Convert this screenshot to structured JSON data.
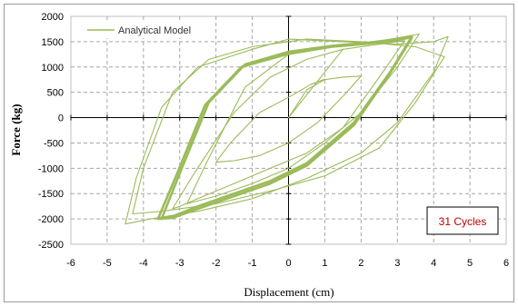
{
  "chart_data": {
    "type": "line",
    "xlabel": "Displacement (cm)",
    "ylabel": "Force (kg)",
    "xlim": [
      -6,
      6
    ],
    "ylim": [
      -2500,
      2000
    ],
    "x_ticks": [
      "-6",
      "-5",
      "-4",
      "-3",
      "-2",
      "-1",
      "0",
      "1",
      "2",
      "3",
      "4",
      "5",
      "6"
    ],
    "y_ticks": [
      "-2500",
      "-2000",
      "-1500",
      "-1000",
      "-500",
      "0",
      "500",
      "1000",
      "1500",
      "2000"
    ],
    "grid": true,
    "legend_position": "top-left",
    "annotation": "31 Cycles",
    "annotation_color": "#c00000",
    "series": [
      {
        "name": "Analytical Model",
        "color": "#9bbb59",
        "loops": [
          {
            "x": [
              0,
              0.5,
              1.0,
              1.5,
              2.0,
              1.6,
              0.8,
              0.0,
              -0.8,
              -1.5,
              -2.0,
              -1.6,
              -0.8,
              0.0,
              0.6,
              1.0
            ],
            "y": [
              0,
              550,
              750,
              800,
              820,
              500,
              -100,
              -500,
              -750,
              -850,
              -880,
              -500,
              100,
              400,
              650,
              760
            ]
          },
          {
            "x": [
              0,
              1.5,
              2.5,
              3.0,
              3.2,
              2.6,
              1.5,
              0.5,
              -0.5,
              -1.5,
              -2.5,
              -3.0,
              -3.2,
              -2.6,
              -1.5,
              -0.5,
              0.5,
              1.5,
              2.5,
              3.2
            ],
            "y": [
              0,
              1350,
              1450,
              1500,
              1520,
              900,
              -200,
              -700,
              -1000,
              -1300,
              -1600,
              -1750,
              -1800,
              -1100,
              100,
              800,
              1150,
              1350,
              1450,
              1520
            ]
          },
          {
            "x": [
              3.4,
              2.8,
              1.8,
              0.5,
              -0.5,
              -1.5,
              -2.5,
              -3.2,
              -3.5,
              -3.0,
              -2.2,
              -1.2,
              0.0,
              1.2,
              2.2,
              3.0,
              3.4
            ],
            "y": [
              1600,
              900,
              -100,
              -900,
              -1250,
              -1500,
              -1750,
              -1950,
              -2000,
              -1100,
              300,
              1050,
              1300,
              1420,
              1480,
              1550,
              1600
            ],
            "bold": true
          },
          {
            "x": [
              3.4,
              2.8,
              1.8,
              0.5,
              -0.5,
              -1.5,
              -2.5,
              -3.2,
              -3.6,
              -3.1,
              -2.3,
              -1.3,
              0.0,
              1.2,
              2.2,
              3.0,
              3.35
            ],
            "y": [
              1580,
              880,
              -150,
              -950,
              -1300,
              -1550,
              -1800,
              -1980,
              -2000,
              -1150,
              250,
              1000,
              1260,
              1400,
              1460,
              1530,
              1580
            ],
            "bold": true
          },
          {
            "x": [
              4.4,
              4.0,
              3.0,
              2.0,
              0.5,
              -1.0,
              -2.5,
              -3.8,
              -4.5,
              -4.2,
              -3.5,
              -2.5,
              -1.0,
              0.0,
              1.5,
              3.0,
              4.0,
              4.4
            ],
            "y": [
              1600,
              900,
              -100,
              -700,
              -1200,
              -1600,
              -1850,
              -2000,
              -2100,
              -1200,
              200,
              1000,
              1350,
              1550,
              1500,
              1450,
              1500,
              1600
            ]
          },
          {
            "x": [
              4.3,
              3.5,
              2.5,
              1.0,
              -0.5,
              -2.0,
              -3.5,
              -4.3,
              -4.0,
              -3.2,
              -2.2,
              -1.0,
              0.5,
              2.0,
              3.5,
              4.3
            ],
            "y": [
              1200,
              300,
              -600,
              -1150,
              -1450,
              -1700,
              -1850,
              -1900,
              -1000,
              500,
              1150,
              1400,
              1550,
              1500,
              1400,
              1200
            ]
          },
          {
            "x": [
              3.6,
              3.0,
              2.0,
              1.0,
              0.0,
              -1.0,
              -2.0,
              -2.8,
              -2.2,
              -1.2,
              0.0,
              1.2,
              2.4,
              3.6
            ],
            "y": [
              1650,
              1000,
              100,
              -500,
              -1000,
              -1300,
              -1550,
              -1700,
              -800,
              600,
              1250,
              1400,
              1500,
              1650
            ]
          }
        ]
      }
    ]
  }
}
